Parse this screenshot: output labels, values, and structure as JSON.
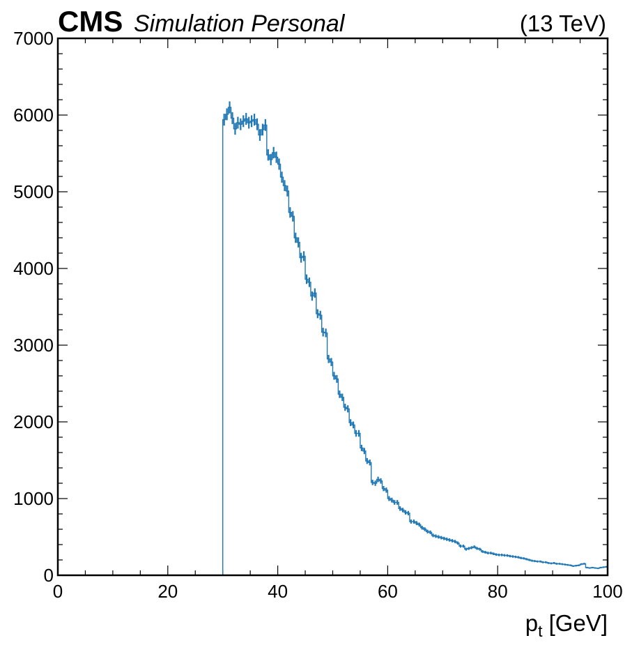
{
  "header": {
    "experiment": "CMS",
    "status": "Simulation Personal",
    "energy": "(13 TeV)"
  },
  "chart_data": {
    "type": "histogram",
    "title": "",
    "xlabel": "p_t [GeV]",
    "xlabel_main": "p",
    "xlabel_sub": "t",
    "xlabel_unit": " [GeV]",
    "ylabel": "",
    "xlim": [
      0,
      100
    ],
    "ylim": [
      0,
      7000
    ],
    "x_ticks": [
      "0",
      "20",
      "40",
      "60",
      "80",
      "100"
    ],
    "y_ticks": [
      "0",
      "1000",
      "2000",
      "3000",
      "4000",
      "5000",
      "6000",
      "7000"
    ],
    "grid": false,
    "series_color": "#1f77b4",
    "bin_width": 0.5,
    "bins_start": 30,
    "values": [
      5940,
      6010,
      6100,
      5960,
      5820,
      5900,
      5880,
      5920,
      5950,
      5900,
      5920,
      5940,
      5880,
      5740,
      5810,
      5870,
      5480,
      5420,
      5510,
      5450,
      5360,
      5190,
      5080,
      5010,
      4730,
      4680,
      4400,
      4340,
      4140,
      4160,
      3860,
      3820,
      3640,
      3680,
      3410,
      3390,
      3170,
      3160,
      2820,
      2780,
      2600,
      2560,
      2360,
      2320,
      2190,
      2170,
      1990,
      1960,
      1850,
      1850,
      1660,
      1620,
      1490,
      1470,
      1210,
      1200,
      1250,
      1230,
      1130,
      1110,
      1000,
      980,
      950,
      950,
      870,
      850,
      820,
      810,
      700,
      700,
      680,
      660,
      620,
      600,
      570,
      560,
      520,
      510,
      500,
      490,
      480,
      470,
      460,
      450,
      440,
      420,
      380,
      380,
      340,
      350,
      360,
      370,
      350,
      340,
      310,
      300,
      290,
      290,
      280,
      270,
      265,
      265,
      260,
      258,
      250,
      245,
      240,
      235,
      225,
      220,
      210,
      200,
      190,
      185,
      180,
      180,
      170,
      170,
      160,
      155,
      160,
      150,
      150,
      145,
      140,
      135,
      130,
      120,
      125,
      130,
      145,
      150,
      100,
      95,
      100,
      95,
      90,
      100,
      105,
      110
    ],
    "errors_shown": true
  }
}
